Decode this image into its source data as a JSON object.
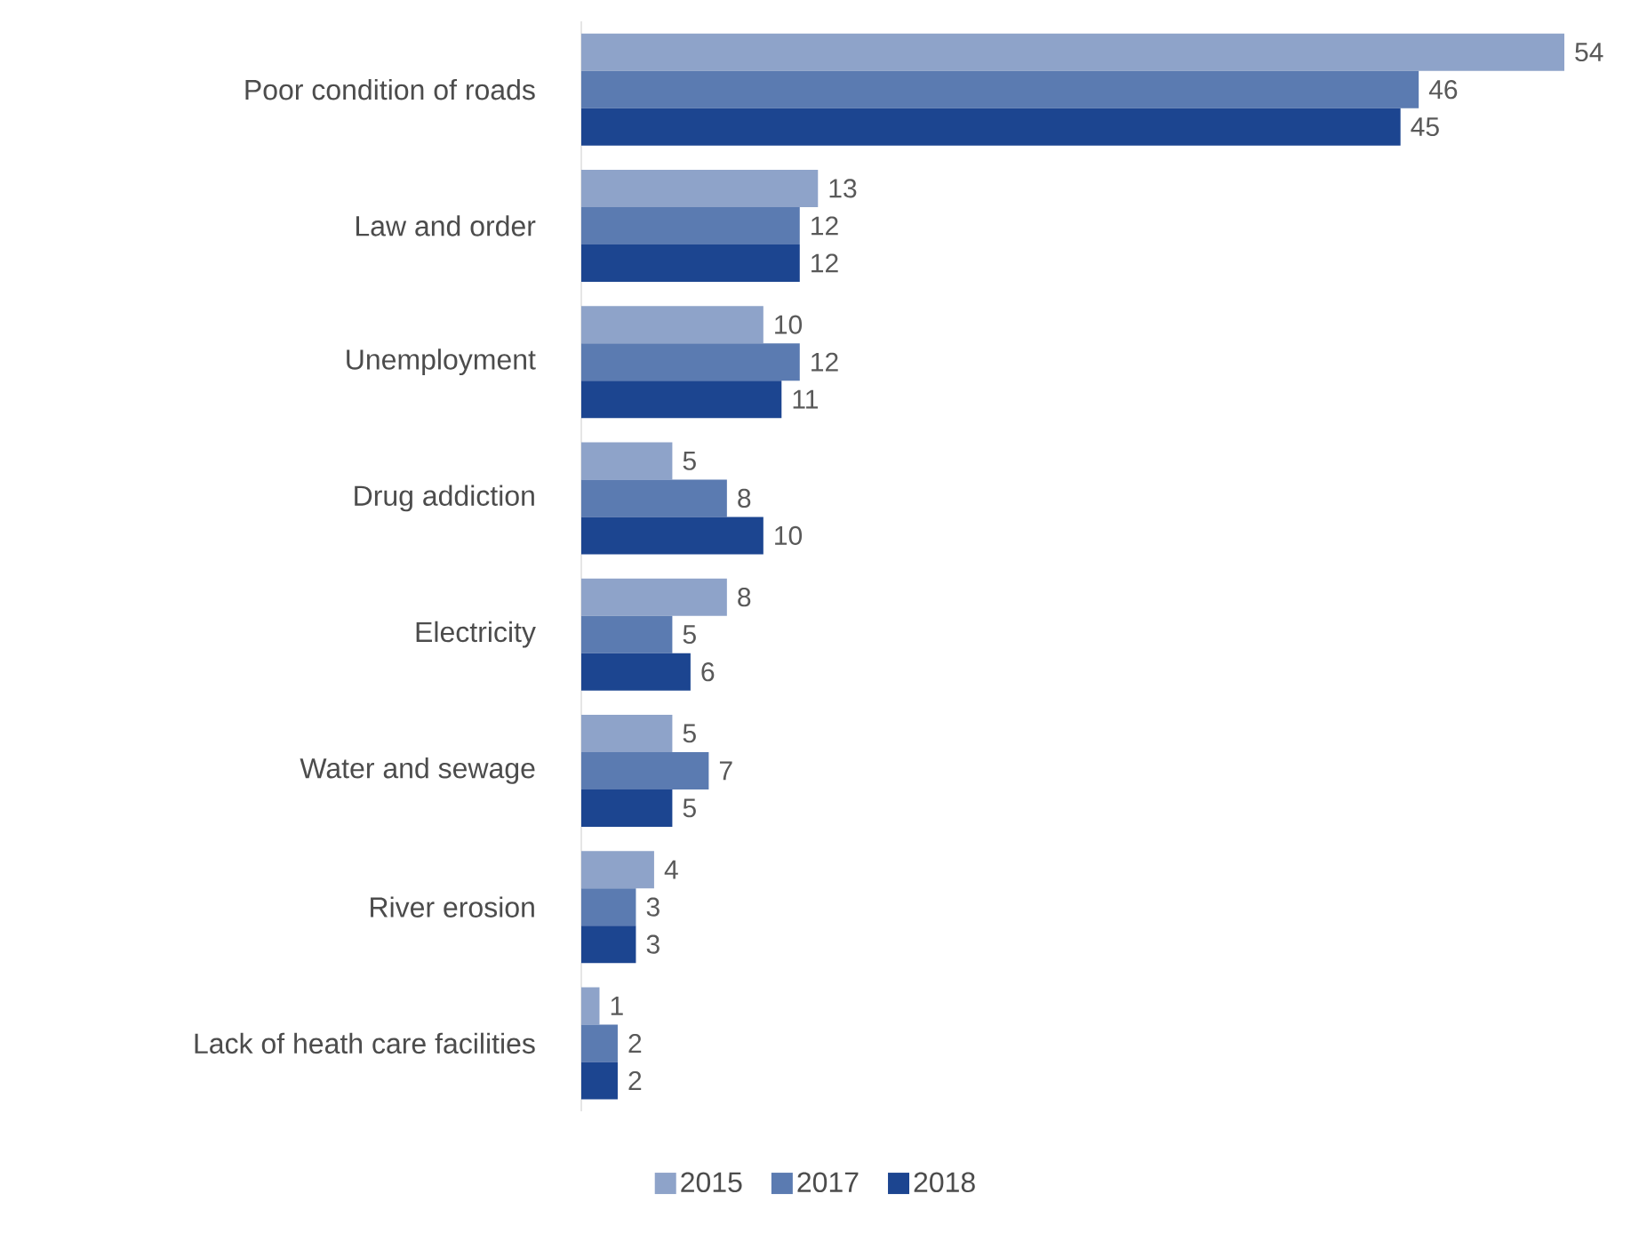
{
  "chart_data": {
    "type": "bar",
    "orientation": "horizontal",
    "categories": [
      "Poor condition of roads",
      "Law and order",
      "Unemployment",
      "Drug addiction",
      "Electricity",
      "Water and sewage",
      "River erosion",
      "Lack of heath care facilities"
    ],
    "series": [
      {
        "name": "2015",
        "color": "#8ea3c9",
        "values": [
          54,
          13,
          10,
          5,
          8,
          5,
          4,
          1
        ]
      },
      {
        "name": "2017",
        "color": "#5b7bb1",
        "values": [
          46,
          12,
          12,
          8,
          5,
          7,
          3,
          2
        ]
      },
      {
        "name": "2018",
        "color": "#1c4590",
        "values": [
          45,
          12,
          11,
          10,
          6,
          5,
          3,
          2
        ]
      }
    ],
    "data_labels": true,
    "legend": "bottom"
  }
}
